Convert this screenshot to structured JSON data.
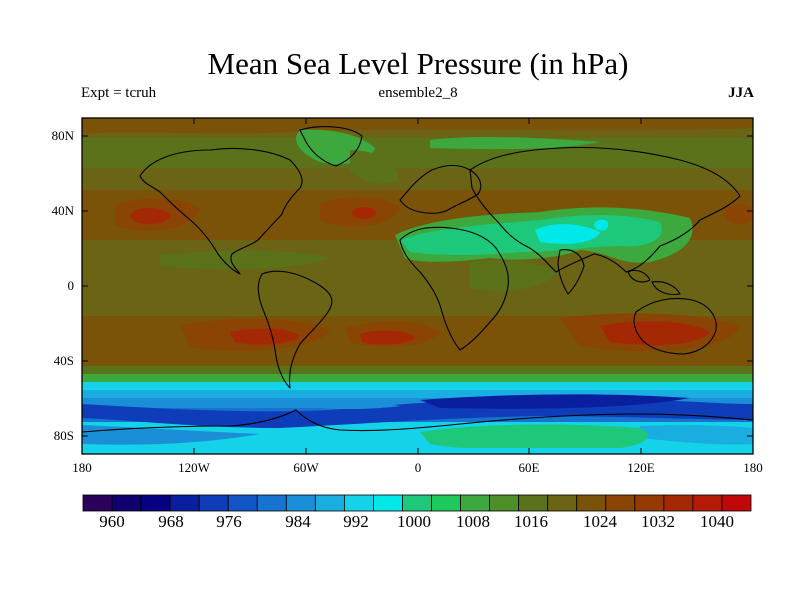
{
  "title": "Mean Sea Level Pressure (in hPa)",
  "subtitle_left": "Expt = tcruh",
  "subtitle_center": "ensemble2_8",
  "subtitle_right": "JJA",
  "colors": {
    "scale": [
      "#2a005a",
      "#10006e",
      "#060082",
      "#0a1f9e",
      "#0f3cb8",
      "#1255c7",
      "#1673cf",
      "#1a8fd8",
      "#1aaee0",
      "#14d2e8",
      "#00e8e8",
      "#1ec87a",
      "#1ec85a",
      "#3da83e",
      "#4e8f28",
      "#5a731a",
      "#6a6414",
      "#7a5208",
      "#8a4404",
      "#963a04",
      "#a52804",
      "#b51a06",
      "#c00808"
    ]
  },
  "map": {
    "lat_labels": [
      "80N",
      "40N",
      "0",
      "40S",
      "80S"
    ],
    "lon_labels": [
      "180",
      "120W",
      "60W",
      "0",
      "60E",
      "120E",
      "180"
    ]
  },
  "colorbar": {
    "labels": [
      "960",
      "968",
      "976",
      "984",
      "992",
      "1000",
      "1008",
      "1016",
      "1024",
      "1032",
      "1040"
    ]
  }
}
